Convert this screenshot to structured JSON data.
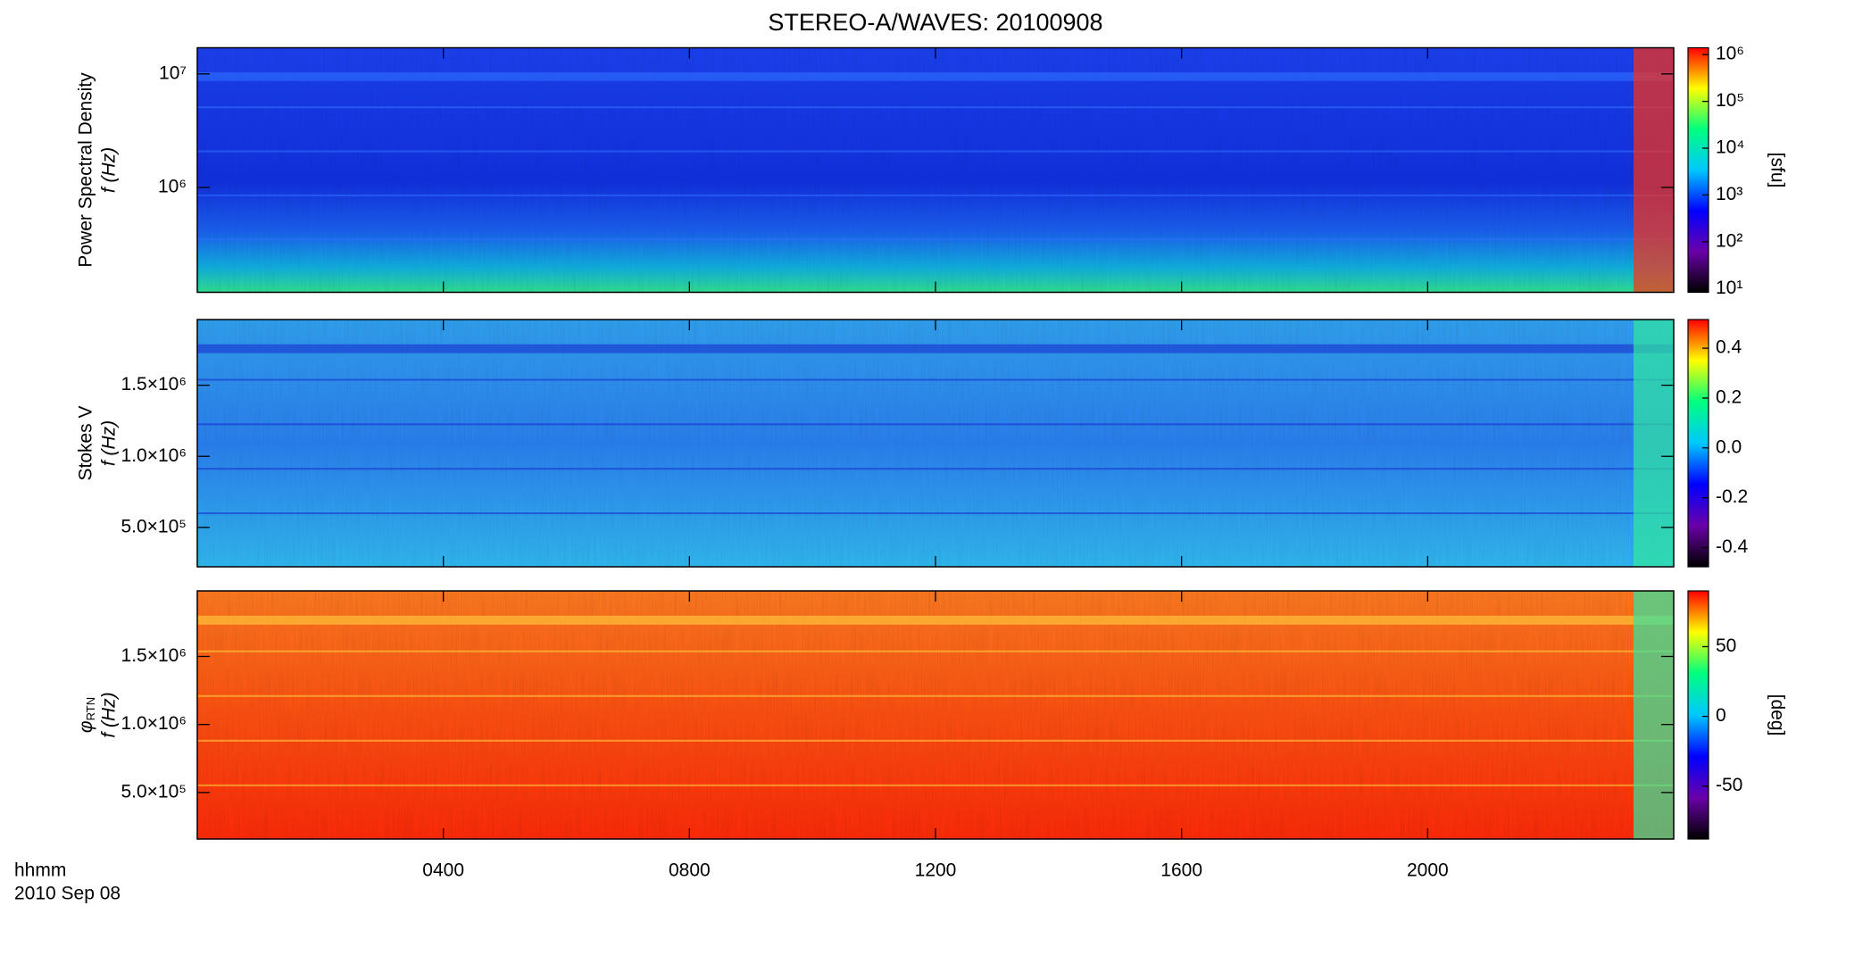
{
  "title": "STEREO-A/WAVES: 20100908",
  "time_label": "hhmm",
  "date_label": "2010 Sep 08",
  "x_axis": {
    "xlim": [
      0,
      24
    ],
    "xticks": [
      {
        "value": 4,
        "label": "0400"
      },
      {
        "value": 8,
        "label": "0800"
      },
      {
        "value": 12,
        "label": "1200"
      },
      {
        "value": 16,
        "label": "1600"
      },
      {
        "value": 20,
        "label": "2000"
      }
    ]
  },
  "chart_data": [
    {
      "type": "spectrogram",
      "ylabel": [
        "Power Spectral Density",
        "f (Hz)"
      ],
      "log_y": true,
      "ylim": [
        119000,
        17000000
      ],
      "yticks": [
        {
          "value": 1000000,
          "label": "10⁶"
        },
        {
          "value": 10000000,
          "label": "10⁷"
        }
      ],
      "colormap": [
        "#000000",
        "#6a00a8",
        "#0000ff",
        "#00c8ff",
        "#00ff7f",
        "#ffff00",
        "#ff0000"
      ],
      "log_color": true,
      "clim": [
        8.3,
        1400000
      ],
      "cticks": [
        {
          "value": 10,
          "label": "10¹"
        },
        {
          "value": 100,
          "label": "10²"
        },
        {
          "value": 1000,
          "label": "10³"
        },
        {
          "value": 10000,
          "label": "10⁴"
        },
        {
          "value": 100000,
          "label": "10⁵"
        },
        {
          "value": 1000000,
          "label": "10⁶"
        }
      ],
      "clabel": "[sfu]"
    },
    {
      "type": "spectrogram",
      "ylabel": [
        "Stokes V",
        "f (Hz)"
      ],
      "log_y": false,
      "ylim": [
        223000,
        1962000
      ],
      "yticks": [
        {
          "value": 500000,
          "label": "5.0×10⁵"
        },
        {
          "value": 1000000,
          "label": "1.0×10⁶"
        },
        {
          "value": 1500000,
          "label": "1.5×10⁶"
        }
      ],
      "colormap": [
        "#000000",
        "#6a00a8",
        "#0000ff",
        "#00c8ff",
        "#00ff7f",
        "#ffff00",
        "#ff0000"
      ],
      "log_color": false,
      "clim": [
        -0.477,
        0.515
      ],
      "cticks": [
        -0.4,
        -0.2,
        {
          "value": 0,
          "label": "0.0"
        },
        0.2,
        0.4
      ]
    },
    {
      "type": "spectrogram",
      "ylabel": [
        "φ",
        "RTN",
        "f (Hz)"
      ],
      "log_y": false,
      "ylim": [
        158000,
        1982000
      ],
      "yticks": [
        {
          "value": 500000,
          "label": "5.0×10⁵"
        },
        {
          "value": 1000000,
          "label": "1.0×10⁶"
        },
        {
          "value": 1500000,
          "label": "1.5×10⁶"
        }
      ],
      "colormap": [
        "#000000",
        "#6a00a8",
        "#0000ff",
        "#00c8ff",
        "#00ff7f",
        "#ffff00",
        "#ff0000"
      ],
      "log_color": false,
      "clim": [
        -88,
        90
      ],
      "cticks": [
        -50,
        0,
        50
      ],
      "clabel": "[deg]"
    }
  ]
}
